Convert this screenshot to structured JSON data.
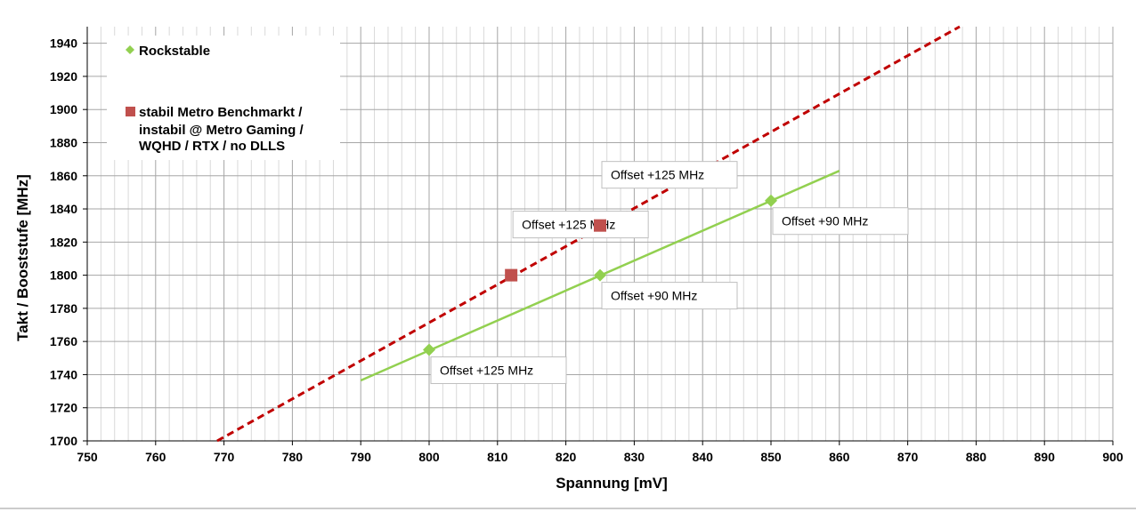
{
  "chart_data": {
    "type": "scatter",
    "xlabel": "Spannung [mV]",
    "ylabel": "Takt / Booststufe [MHz]",
    "xlim": [
      750,
      900
    ],
    "ylim": [
      1700,
      1950
    ],
    "x_major_step": 10,
    "x_minor_step": 2,
    "y_major_step": 20,
    "y_minor_step": 20,
    "grid": true,
    "legend_position": "top-left",
    "series": [
      {
        "name": "Rockstable",
        "marker": "diamond",
        "color": "#92D050",
        "points": [
          {
            "x": 800,
            "y": 1755,
            "label": "Offset +125 MHz"
          },
          {
            "x": 825,
            "y": 1800,
            "label": "Offset +90 MHz"
          },
          {
            "x": 850,
            "y": 1845,
            "label": "Offset +90 MHz"
          }
        ],
        "trendline": {
          "style": "solid",
          "x": [
            790,
            860
          ],
          "y": [
            1736.5,
            1863
          ]
        }
      },
      {
        "name": "stabil Metro Benchmarkt / instabil @ Metro Gaming / WQHD / RTX / no DLLS",
        "name_lines": [
          "stabil Metro Benchmarkt /",
          "instabil @ Metro Gaming /",
          "WQHD / RTX / no DLLS"
        ],
        "marker": "square",
        "color": "#C0504D",
        "points": [
          {
            "x": 812,
            "y": 1800,
            "label": "Offset +125 MHz"
          },
          {
            "x": 825,
            "y": 1830,
            "label": "Offset +125 MHz"
          }
        ],
        "trendline": {
          "style": "dashed",
          "color": "#C00000",
          "x": [
            769,
            877.6
          ],
          "y": [
            1700,
            1950
          ]
        }
      }
    ]
  }
}
